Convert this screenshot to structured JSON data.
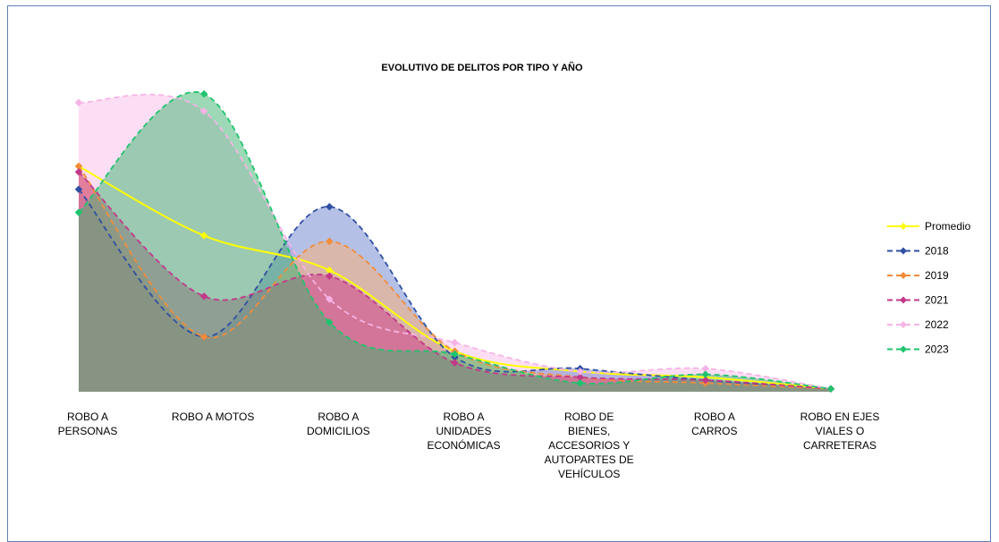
{
  "chart_data": {
    "type": "area",
    "title": "EVOLUTIVO DE DELITOS POR TIPO Y AÑO",
    "xlabel": "",
    "ylabel": "",
    "categories": [
      [
        "ROBO A",
        "PERSONAS"
      ],
      [
        "ROBO A MOTOS"
      ],
      [
        "ROBO A",
        "DOMICILIOS"
      ],
      [
        "ROBO A",
        "UNIDADES",
        "ECONÓMICAS"
      ],
      [
        "ROBO DE",
        "BIENES,",
        "ACCESORIOS Y",
        "AUTOPARTES DE",
        "VEHÍCULOS"
      ],
      [
        "ROBO A",
        "CARROS"
      ],
      [
        "ROBO EN EJES",
        "VIALES O",
        "CARRETERAS"
      ]
    ],
    "ylim": [
      0,
      100
    ],
    "grid": false,
    "legend_position": "right",
    "series": [
      {
        "name": "Promedio",
        "color": "#ffff00",
        "style": "solid",
        "fill": false,
        "values": [
          78,
          54,
          42,
          14,
          7,
          5,
          1
        ]
      },
      {
        "name": "2018",
        "color": "#2f4fa3",
        "style": "dashed",
        "fill": true,
        "fill_color": "rgba(120,140,210,0.55)",
        "values": [
          70,
          19,
          64,
          12,
          8,
          4,
          1
        ]
      },
      {
        "name": "2019",
        "color": "#f28c3a",
        "style": "dashed",
        "fill": true,
        "fill_color": "rgba(245,175,120,0.55)",
        "values": [
          78,
          19,
          52,
          14,
          5,
          3,
          1
        ]
      },
      {
        "name": "2021",
        "color": "#c2398a",
        "style": "dashed",
        "fill": true,
        "fill_color": "rgba(205,70,140,0.55)",
        "values": [
          76,
          33,
          40,
          10,
          5,
          4,
          1
        ]
      },
      {
        "name": "2022",
        "color": "#f6b3e6",
        "style": "dashed",
        "fill": true,
        "fill_color": "rgba(250,195,235,0.55)",
        "values": [
          100,
          97,
          32,
          17,
          7,
          8,
          1
        ]
      },
      {
        "name": "2023",
        "color": "#1ec46e",
        "style": "dashed",
        "fill": true,
        "fill_color": "rgba(60,180,110,0.5)",
        "values": [
          62,
          103,
          24,
          13,
          3,
          6,
          1
        ]
      }
    ]
  }
}
